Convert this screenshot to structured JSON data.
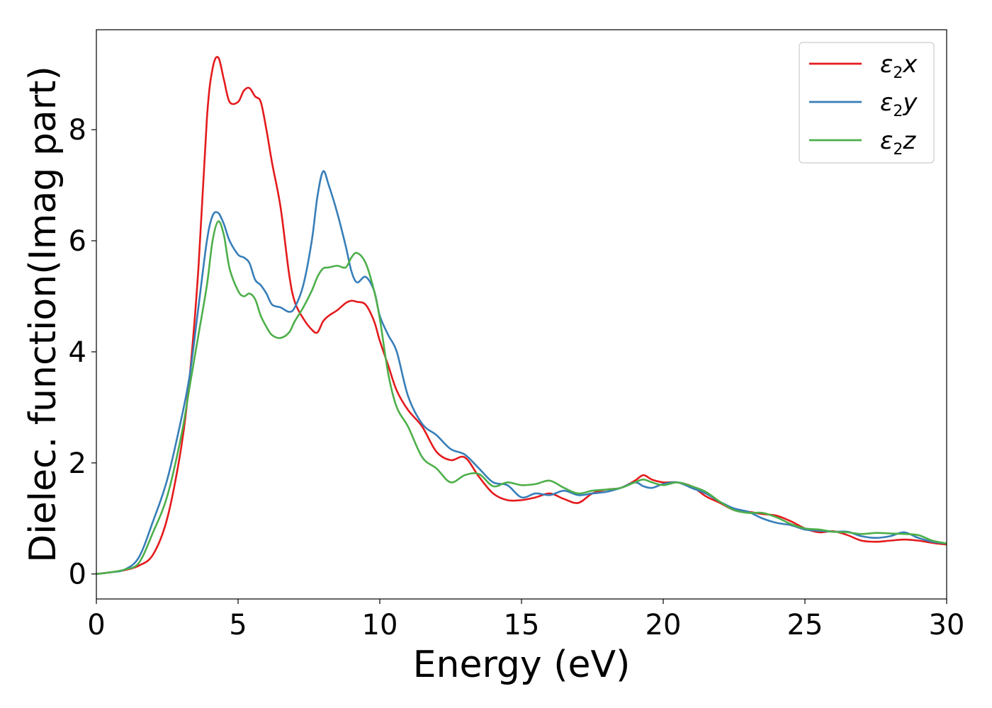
{
  "chart_data": {
    "type": "line",
    "title": "",
    "xlabel": "Energy (eV)",
    "ylabel": "Dielec. function(Imag part)",
    "xlim": [
      0,
      30
    ],
    "ylim": [
      -0.45,
      9.8
    ],
    "xticks": [
      "0",
      "5",
      "10",
      "15",
      "20",
      "25",
      "30"
    ],
    "yticks": [
      "0",
      "2",
      "4",
      "6",
      "8"
    ],
    "grid": false,
    "legend_position": "top-right",
    "series": [
      {
        "name": "ε2x",
        "label_symbol": "ε",
        "label_sub": "2",
        "label_var": "x",
        "color": "#e41a1c",
        "x": [
          0,
          0.5,
          1.0,
          1.5,
          2.0,
          2.5,
          3.0,
          3.3,
          3.6,
          3.9,
          4.1,
          4.3,
          4.5,
          4.7,
          5.0,
          5.2,
          5.4,
          5.6,
          5.8,
          6.0,
          6.2,
          6.5,
          6.8,
          7.0,
          7.3,
          7.6,
          7.8,
          8.0,
          8.2,
          8.5,
          8.8,
          9.0,
          9.2,
          9.5,
          9.8,
          10.0,
          10.3,
          10.6,
          11.0,
          11.5,
          12.0,
          12.5,
          13.0,
          13.5,
          14.0,
          14.5,
          15.0,
          15.5,
          16.0,
          16.5,
          17.0,
          17.5,
          18.0,
          18.5,
          19.0,
          19.3,
          19.6,
          20.0,
          20.5,
          21.0,
          21.5,
          22.0,
          22.5,
          23.0,
          23.5,
          24.0,
          24.5,
          25.0,
          25.5,
          26.0,
          26.5,
          27.0,
          27.5,
          28.0,
          28.5,
          29.0,
          29.5,
          30.0
        ],
        "y": [
          0.0,
          0.03,
          0.07,
          0.15,
          0.35,
          1.0,
          2.3,
          3.6,
          5.5,
          8.2,
          9.1,
          9.3,
          8.9,
          8.5,
          8.5,
          8.7,
          8.75,
          8.6,
          8.5,
          8.0,
          7.4,
          6.6,
          5.4,
          4.9,
          4.6,
          4.4,
          4.35,
          4.55,
          4.65,
          4.75,
          4.88,
          4.92,
          4.9,
          4.85,
          4.55,
          4.2,
          3.75,
          3.3,
          2.95,
          2.65,
          2.2,
          2.05,
          2.1,
          1.75,
          1.45,
          1.33,
          1.33,
          1.38,
          1.45,
          1.35,
          1.28,
          1.45,
          1.52,
          1.55,
          1.68,
          1.78,
          1.7,
          1.65,
          1.65,
          1.58,
          1.4,
          1.28,
          1.15,
          1.12,
          1.08,
          1.05,
          0.95,
          0.82,
          0.75,
          0.77,
          0.7,
          0.6,
          0.58,
          0.6,
          0.62,
          0.6,
          0.56,
          0.53
        ]
      },
      {
        "name": "ε2y",
        "label_symbol": "ε",
        "label_sub": "2",
        "label_var": "y",
        "color": "#377eb8",
        "x": [
          0,
          0.5,
          1.0,
          1.5,
          2.0,
          2.5,
          3.0,
          3.3,
          3.6,
          3.9,
          4.1,
          4.3,
          4.5,
          4.7,
          5.0,
          5.2,
          5.4,
          5.6,
          5.8,
          6.0,
          6.2,
          6.5,
          6.8,
          7.0,
          7.3,
          7.6,
          7.8,
          8.0,
          8.2,
          8.5,
          8.8,
          9.0,
          9.2,
          9.5,
          9.8,
          10.0,
          10.3,
          10.6,
          11.0,
          11.5,
          12.0,
          12.5,
          13.0,
          13.5,
          14.0,
          14.5,
          15.0,
          15.5,
          16.0,
          16.5,
          17.0,
          17.5,
          18.0,
          18.5,
          19.0,
          19.3,
          19.6,
          20.0,
          20.5,
          21.0,
          21.5,
          22.0,
          22.5,
          23.0,
          23.5,
          24.0,
          24.5,
          25.0,
          25.5,
          26.0,
          26.5,
          27.0,
          27.5,
          28.0,
          28.5,
          29.0,
          29.5,
          30.0
        ],
        "y": [
          0.0,
          0.03,
          0.08,
          0.3,
          0.95,
          1.7,
          2.8,
          3.6,
          4.8,
          6.0,
          6.45,
          6.5,
          6.3,
          6.0,
          5.75,
          5.7,
          5.6,
          5.3,
          5.2,
          5.05,
          4.85,
          4.8,
          4.72,
          4.8,
          5.2,
          6.0,
          6.8,
          7.25,
          7.0,
          6.5,
          5.9,
          5.45,
          5.25,
          5.35,
          5.1,
          4.65,
          4.3,
          4.0,
          3.2,
          2.7,
          2.5,
          2.25,
          2.15,
          1.9,
          1.65,
          1.6,
          1.38,
          1.45,
          1.42,
          1.5,
          1.42,
          1.45,
          1.48,
          1.55,
          1.65,
          1.58,
          1.55,
          1.62,
          1.65,
          1.55,
          1.45,
          1.3,
          1.18,
          1.12,
          1.0,
          0.92,
          0.88,
          0.8,
          0.78,
          0.76,
          0.76,
          0.68,
          0.65,
          0.68,
          0.75,
          0.65,
          0.58,
          0.55
        ]
      },
      {
        "name": "ε2z",
        "label_symbol": "ε",
        "label_sub": "2",
        "label_var": "z",
        "color": "#4daf4a",
        "x": [
          0,
          0.5,
          1.0,
          1.5,
          2.0,
          2.5,
          3.0,
          3.3,
          3.6,
          3.9,
          4.1,
          4.3,
          4.5,
          4.7,
          5.0,
          5.2,
          5.4,
          5.6,
          5.8,
          6.0,
          6.2,
          6.5,
          6.8,
          7.0,
          7.3,
          7.6,
          7.8,
          8.0,
          8.2,
          8.5,
          8.8,
          9.0,
          9.2,
          9.5,
          9.8,
          10.0,
          10.3,
          10.6,
          11.0,
          11.5,
          12.0,
          12.5,
          13.0,
          13.5,
          14.0,
          14.5,
          15.0,
          15.5,
          16.0,
          16.5,
          17.0,
          17.5,
          18.0,
          18.5,
          19.0,
          19.3,
          19.6,
          20.0,
          20.5,
          21.0,
          21.5,
          22.0,
          22.5,
          23.0,
          23.5,
          24.0,
          24.5,
          25.0,
          25.5,
          26.0,
          26.5,
          27.0,
          27.5,
          28.0,
          28.5,
          29.0,
          29.5,
          30.0
        ],
        "y": [
          0.0,
          0.03,
          0.08,
          0.2,
          0.75,
          1.4,
          2.5,
          3.4,
          4.3,
          5.2,
          6.0,
          6.35,
          6.1,
          5.5,
          5.1,
          5.0,
          5.05,
          4.95,
          4.65,
          4.45,
          4.3,
          4.25,
          4.35,
          4.55,
          4.8,
          5.1,
          5.35,
          5.5,
          5.52,
          5.55,
          5.52,
          5.7,
          5.78,
          5.6,
          5.1,
          4.6,
          3.6,
          3.0,
          2.65,
          2.1,
          1.9,
          1.65,
          1.78,
          1.8,
          1.58,
          1.65,
          1.6,
          1.62,
          1.68,
          1.55,
          1.45,
          1.5,
          1.52,
          1.55,
          1.65,
          1.7,
          1.65,
          1.6,
          1.65,
          1.58,
          1.48,
          1.3,
          1.15,
          1.1,
          1.1,
          1.02,
          0.9,
          0.82,
          0.8,
          0.76,
          0.75,
          0.72,
          0.74,
          0.73,
          0.72,
          0.7,
          0.6,
          0.55
        ]
      }
    ]
  }
}
